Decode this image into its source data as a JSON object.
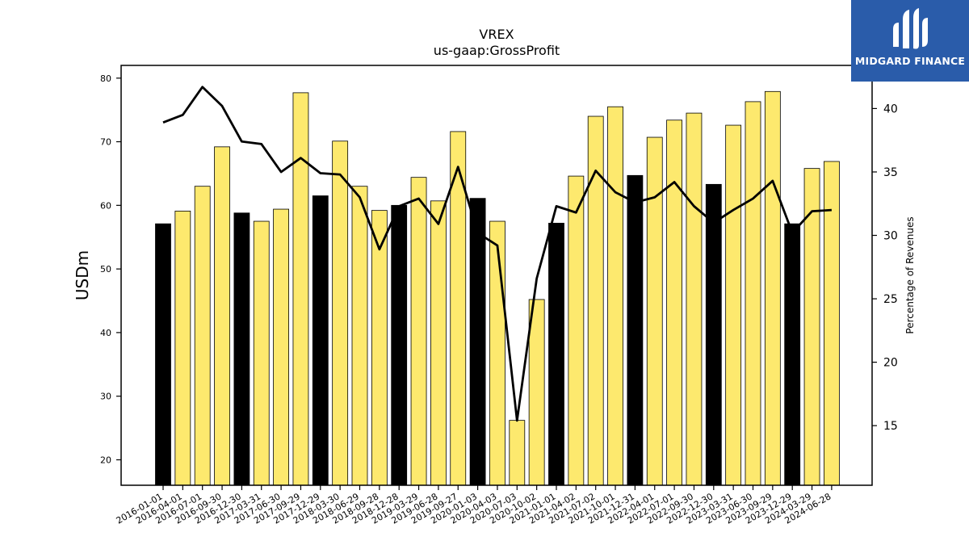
{
  "brand": {
    "name": "MIDGARD FINANCE",
    "logo_icon": "midgard-logo-icon",
    "color": "#2a5caa"
  },
  "chart_data": {
    "type": "bar",
    "title": "VREX",
    "subtitle": "us-gaap:GrossProfit",
    "ylabel": "USDm",
    "y2label": "Percentage of Revenues",
    "ylim": [
      16,
      82
    ],
    "y2lim": [
      10.3,
      43.4
    ],
    "yticks": [
      20,
      30,
      40,
      50,
      60,
      70,
      80
    ],
    "y2ticks": [
      15,
      20,
      25,
      30,
      35,
      40
    ],
    "grid": false,
    "bar_colors": {
      "highlight": "#000000",
      "normal": "#fde96e"
    },
    "line_color": "#000000",
    "categories": [
      "2016-01-01",
      "2016-04-01",
      "2016-07-01",
      "2016-09-30",
      "2016-12-30",
      "2017-03-31",
      "2017-06-30",
      "2017-09-29",
      "2017-12-29",
      "2018-03-30",
      "2018-06-29",
      "2018-09-28",
      "2018-12-28",
      "2019-03-29",
      "2019-06-28",
      "2019-09-27",
      "2020-01-03",
      "2020-04-03",
      "2020-07-03",
      "2020-10-02",
      "2021-01-01",
      "2021-04-02",
      "2021-07-02",
      "2021-10-01",
      "2021-12-31",
      "2022-04-01",
      "2022-07-01",
      "2022-09-30",
      "2022-12-30",
      "2023-03-31",
      "2023-06-30",
      "2023-09-29",
      "2023-12-29",
      "2024-03-29",
      "2024-06-28"
    ],
    "series": [
      {
        "type": "bar",
        "values": [
          57.1,
          59.1,
          63.0,
          69.2,
          58.8,
          57.5,
          59.4,
          77.7,
          61.5,
          70.1,
          63.0,
          59.2,
          60.0,
          64.4,
          60.7,
          71.6,
          61.1,
          57.5,
          26.2,
          45.2,
          57.2,
          64.6,
          74.0,
          75.5,
          64.7,
          70.7,
          73.4,
          74.5,
          63.3,
          72.6,
          76.3,
          77.9,
          57.1,
          65.8,
          66.9
        ],
        "highlight": [
          true,
          false,
          false,
          false,
          true,
          false,
          false,
          false,
          true,
          false,
          false,
          false,
          true,
          false,
          false,
          false,
          true,
          false,
          false,
          false,
          true,
          false,
          false,
          false,
          true,
          false,
          false,
          false,
          true,
          false,
          false,
          false,
          true,
          false,
          false
        ]
      },
      {
        "type": "line",
        "axis": "right",
        "values": [
          38.9,
          39.5,
          41.7,
          40.2,
          37.4,
          37.2,
          35.0,
          36.1,
          34.9,
          34.8,
          33.0,
          28.9,
          32.3,
          32.9,
          30.9,
          35.4,
          30.2,
          29.2,
          15.4,
          26.6,
          32.3,
          31.8,
          35.1,
          33.4,
          32.6,
          33.0,
          34.2,
          32.3,
          31.0,
          32.0,
          32.9,
          34.3,
          30.2,
          31.9,
          32.0
        ]
      }
    ]
  }
}
